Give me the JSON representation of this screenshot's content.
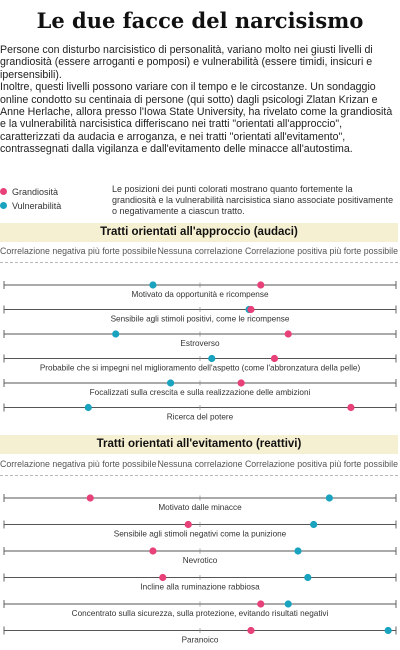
{
  "title": "Le due facce del narcisismo",
  "intro": [
    "Persone con disturbo narcisistico di personalità, variano molto nei giusti livelli di grandiosità (essere arroganti e pomposi) e vulnerabilità (essere timidi, insicuri e ipersensibili).",
    "Inoltre, questi livelli possono variare con il tempo e le circostanze. Un sondaggio online condotto su centinaia di persone (qui sotto) dagli psicologi Zlatan Krizan e Anne Herlache, allora presso l'Iowa State University, ha rivelato come la grandiosità e la vulnerabilità narcisistica differiscano nei tratti \"orientati all'approccio\", caratterizzati da audacia e arroganza, e nei tratti \"orientati all'evitamento\", contrassegnati dalla vigilanza e dall'evitamento delle minacce all'autostima."
  ],
  "legend": {
    "grandiosity": "Grandiosità",
    "vulnerability": "Vulnerabilità",
    "description": "Le posizioni dei punti colorati mostrano quanto fortemente la grandiosità e la vulnerabilità narcisistica siano associate positivamente o negativamente a ciascun tratto."
  },
  "colors": {
    "grandiosity": "#e8417a",
    "vulnerability": "#1aa3bf",
    "header_bg": "#f6f0d2"
  },
  "axis": {
    "left": "Correlazione negativa più forte possibile",
    "center": "Nessuna correlazione",
    "right": "Correlazione positiva più forte possibile"
  },
  "chart_data": {
    "type": "scatter",
    "x_range": [
      -1,
      1
    ],
    "series_names": [
      "Grandiosità",
      "Vulnerabilità"
    ],
    "sections": [
      {
        "title": "Tratti orientati all'approccio (audaci)",
        "rows": [
          {
            "label": "Motivato da opportunità e ricompense",
            "grandiosity": 0.31,
            "vulnerability": -0.24
          },
          {
            "label": "Sensibile agli stimoli positivi, come le ricompense",
            "grandiosity": 0.26,
            "vulnerability": 0.25
          },
          {
            "label": "Estroverso",
            "grandiosity": 0.45,
            "vulnerability": -0.43
          },
          {
            "label": "Probabile che si impegni nel miglioramento dell'aspetto (come l'abbronzatura della pelle)",
            "grandiosity": 0.38,
            "vulnerability": 0.06
          },
          {
            "label": "Focalizzati sulla crescita e sulla realizzazione delle ambizioni",
            "grandiosity": 0.21,
            "vulnerability": -0.15
          },
          {
            "label": "Ricerca del potere",
            "grandiosity": 0.77,
            "vulnerability": -0.57
          }
        ]
      },
      {
        "title": "Tratti orientati all'evitamento (reattivi)",
        "rows": [
          {
            "label": "Motivato dalle minacce",
            "grandiosity": -0.56,
            "vulnerability": 0.66
          },
          {
            "label": "Sensibile agli stimoli negativi come la punizione",
            "grandiosity": -0.06,
            "vulnerability": 0.58
          },
          {
            "label": "Nevrotico",
            "grandiosity": -0.24,
            "vulnerability": 0.5
          },
          {
            "label": "Incline alla ruminazione rabbiosa",
            "grandiosity": -0.19,
            "vulnerability": 0.55
          },
          {
            "label": "Concentrato sulla sicurezza, sulla protezione, evitando risultati negativi",
            "grandiosity": 0.31,
            "vulnerability": 0.45
          },
          {
            "label": "Paranoico",
            "grandiosity": 0.26,
            "vulnerability": 0.96
          }
        ]
      }
    ]
  }
}
